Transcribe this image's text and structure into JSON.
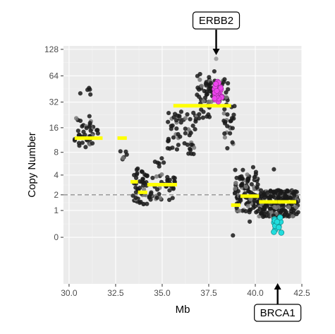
{
  "chart_data": {
    "type": "scatter",
    "xlabel": "Mb",
    "ylabel": "Copy Number",
    "xlim": [
      29.7,
      42.5
    ],
    "x_ticks": [
      30.0,
      32.5,
      35.0,
      37.5,
      40.0,
      42.5
    ],
    "x_tick_labels": [
      "30.0",
      "32.5",
      "35.0",
      "37.5",
      "40.0",
      "42.5"
    ],
    "y_scale": "log2(copy number + 1)",
    "y_ticks": [
      0,
      1,
      2,
      4,
      8,
      16,
      32,
      64,
      128
    ],
    "y_tick_labels": [
      "0",
      "1",
      "2",
      "4",
      "8",
      "16",
      "32",
      "64",
      "128"
    ],
    "ylim": [
      -0.7,
      140
    ],
    "reference_line": {
      "y": 2,
      "style": "dashed"
    },
    "grid": true,
    "colors": {
      "panel": "#ebebeb",
      "grid_major": "#ffffff",
      "grid_minor": "#f4f4f4",
      "points": "#1a1a1a",
      "points_light": "#7a7a7a",
      "segments": "#ffff00",
      "erbb2_points": "#ee44ee",
      "brca1_points": "#22dddd",
      "reference_line": "#888888"
    },
    "segments": [
      {
        "x_start": 30.3,
        "x_end": 31.8,
        "y": 12
      },
      {
        "x_start": 32.6,
        "x_end": 33.1,
        "y": 12
      },
      {
        "x_start": 33.3,
        "x_end": 33.7,
        "y": 3.2
      },
      {
        "x_start": 33.7,
        "x_end": 34.2,
        "y": 2.2
      },
      {
        "x_start": 34.2,
        "x_end": 35.1,
        "y": 2.9
      },
      {
        "x_start": 35.1,
        "x_end": 35.8,
        "y": 2.9
      },
      {
        "x_start": 35.6,
        "x_end": 38.7,
        "y": 29
      },
      {
        "x_start": 38.7,
        "x_end": 39.2,
        "y": 1.3
      },
      {
        "x_start": 39.2,
        "x_end": 40.2,
        "y": 1.9
      },
      {
        "x_start": 40.2,
        "x_end": 41.2,
        "y": 1.5
      },
      {
        "x_start": 41.2,
        "x_end": 42.2,
        "y": 1.5
      }
    ],
    "point_clusters": [
      {
        "x_min": 30.3,
        "x_max": 31.3,
        "y_min": 8.5,
        "y_max": 22,
        "n": 40,
        "group": "other"
      },
      {
        "x_min": 30.6,
        "x_max": 31.4,
        "y_min": 38,
        "y_max": 48,
        "n": 5,
        "group": "other"
      },
      {
        "x_min": 31.4,
        "x_max": 31.8,
        "y_min": 13,
        "y_max": 16,
        "n": 3,
        "group": "other"
      },
      {
        "x_min": 32.7,
        "x_max": 33.2,
        "y_min": 6.5,
        "y_max": 10,
        "n": 6,
        "group": "other"
      },
      {
        "x_min": 33.4,
        "x_max": 34.2,
        "y_min": 1.3,
        "y_max": 5,
        "n": 45,
        "group": "other"
      },
      {
        "x_min": 34.3,
        "x_max": 35.7,
        "y_min": 1.6,
        "y_max": 4.4,
        "n": 40,
        "group": "other"
      },
      {
        "x_min": 34.6,
        "x_max": 35.1,
        "y_min": 5.0,
        "y_max": 7.0,
        "n": 6,
        "group": "other"
      },
      {
        "x_min": 35.3,
        "x_max": 36.8,
        "y_min": 7.5,
        "y_max": 25,
        "n": 55,
        "group": "other"
      },
      {
        "x_min": 36.8,
        "x_max": 37.6,
        "y_min": 20,
        "y_max": 70,
        "n": 40,
        "group": "other"
      },
      {
        "x_min": 37.5,
        "x_max": 38.6,
        "y_min": 32,
        "y_max": 60,
        "n": 45,
        "group": "other"
      },
      {
        "x_min": 38.3,
        "x_max": 38.9,
        "y_min": 10,
        "y_max": 30,
        "n": 25,
        "group": "other"
      },
      {
        "x_min": 38.9,
        "x_max": 40.2,
        "y_min": 0.9,
        "y_max": 4.0,
        "n": 110,
        "group": "other"
      },
      {
        "x_min": 40.2,
        "x_max": 42.3,
        "y_min": 0.7,
        "y_max": 2.4,
        "n": 200,
        "group": "other"
      },
      {
        "x_min": 38.9,
        "x_max": 40.2,
        "y_min": 4.0,
        "y_max": 5.5,
        "n": 6,
        "group": "other"
      },
      {
        "x_min": 37.8,
        "x_max": 38.2,
        "y_min": 32,
        "y_max": 55,
        "n": 30,
        "group": "ERBB2"
      },
      {
        "x_min": 41.0,
        "x_max": 41.4,
        "y_min": 0.08,
        "y_max": 0.7,
        "n": 14,
        "group": "BRCA1"
      }
    ],
    "outlier_points": [
      {
        "x": 37.9,
        "y": 100
      },
      {
        "x": 37.8,
        "y": 72
      },
      {
        "x": 38.8,
        "y": 0.05
      },
      {
        "x": 41.0,
        "y": 4.8
      },
      {
        "x": 38.5,
        "y": 9
      },
      {
        "x": 35.3,
        "y": 9
      },
      {
        "x": 39.7,
        "y": 0.5
      }
    ],
    "annotations": [
      {
        "label": "ERBB2",
        "x": 37.9,
        "direction": "from-top"
      },
      {
        "label": "BRCA1",
        "x": 41.2,
        "direction": "from-bottom"
      }
    ]
  }
}
